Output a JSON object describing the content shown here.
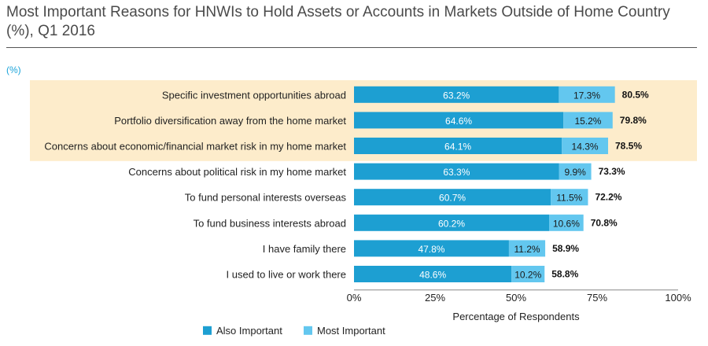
{
  "title": "Most Important Reasons for HNWIs to Hold Assets or Accounts in Markets Outside of Home Country (%), Q1 2016",
  "unit": "(%)",
  "colors": {
    "also": "#1d9fd2",
    "most": "#63c7ef",
    "highlight": "#fdeccb"
  },
  "chart_data": {
    "type": "bar",
    "orientation": "horizontal",
    "stacked": true,
    "categories": [
      "Specific investment opportunities abroad",
      "Portfolio diversification away from the home market",
      "Concerns about economic/financial market risk in my home market",
      "Concerns about political risk in my home market",
      "To fund personal interests overseas",
      "To fund business interests abroad",
      "I have family there",
      "I used to live or work there"
    ],
    "series": [
      {
        "name": "Also Important",
        "values": [
          63.2,
          64.6,
          64.1,
          63.3,
          60.7,
          60.2,
          47.8,
          48.6
        ],
        "labels": [
          "63.2%",
          "64.6%",
          "64.1%",
          "63.3%",
          "60.7%",
          "60.2%",
          "47.8%",
          "48.6%"
        ]
      },
      {
        "name": "Most Important",
        "values": [
          17.3,
          15.2,
          14.3,
          9.9,
          11.5,
          10.6,
          11.2,
          10.2
        ],
        "labels": [
          "17.3%",
          "15.2%",
          "14.3%",
          "9.9%",
          "11.5%",
          "10.6%",
          "11.2%",
          "10.2%"
        ]
      }
    ],
    "totals": [
      "80.5%",
      "79.8%",
      "78.5%",
      "73.3%",
      "72.2%",
      "70.8%",
      "58.9%",
      "58.8%"
    ],
    "highlighted_categories": [
      0,
      1,
      2
    ],
    "xlabel": "Percentage of Respondents",
    "xlim": [
      0,
      100
    ],
    "xticks": [
      "0%",
      "25%",
      "50%",
      "75%",
      "100%"
    ],
    "xtick_values": [
      0,
      25,
      50,
      75,
      100
    ],
    "legend_position": "bottom-left",
    "grid": false
  }
}
